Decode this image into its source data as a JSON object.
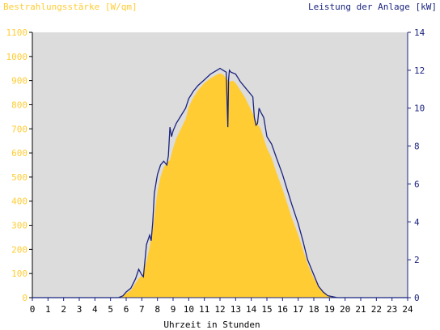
{
  "chart_data": {
    "type": "area",
    "left_axis_label": "Bestrahlungsstärke [W/qm]",
    "right_axis_label": "Leistung der Anlage [kW]",
    "xlabel": "Uhrzeit in Stunden",
    "xlim": [
      0,
      24
    ],
    "ylim_left": [
      0,
      1100
    ],
    "ylim_right": [
      0,
      14
    ],
    "x_ticks": [
      "0",
      "1",
      "2",
      "3",
      "4",
      "5",
      "6",
      "7",
      "8",
      "9",
      "10",
      "11",
      "12",
      "13",
      "14",
      "15",
      "16",
      "17",
      "18",
      "19",
      "20",
      "21",
      "22",
      "23",
      "24"
    ],
    "y_left_ticks": [
      "0",
      "100",
      "200",
      "300",
      "400",
      "500",
      "600",
      "700",
      "800",
      "900",
      "1000",
      "1100"
    ],
    "y_right_ticks": [
      "0",
      "2",
      "4",
      "6",
      "8",
      "10",
      "12",
      "14"
    ],
    "grid": false,
    "colors": {
      "plot_background": "#dcdcdc",
      "irradiance_fill": "#ffcc33",
      "power_line": "#1a237e",
      "left_axis_text": "#ffcc33",
      "right_axis_text": "#1a237e",
      "x_axis_text": "#000000"
    },
    "series": [
      {
        "name": "Bestrahlungsstärke",
        "axis": "left",
        "style": "filled-area",
        "x": [
          0,
          5.5,
          5.8,
          6.0,
          6.3,
          6.6,
          6.8,
          7.0,
          7.3,
          7.5,
          7.7,
          7.9,
          8.0,
          8.2,
          8.4,
          8.6,
          8.8,
          9.0,
          9.2,
          9.5,
          9.8,
          10.0,
          10.3,
          10.6,
          11.0,
          11.4,
          11.8,
          12.0,
          12.2,
          12.4,
          12.6,
          12.8,
          13.0,
          13.3,
          13.6,
          13.9,
          14.2,
          14.4,
          14.6,
          14.8,
          15.0,
          15.3,
          15.6,
          16.0,
          16.3,
          16.6,
          17.0,
          17.3,
          17.6,
          18.0,
          18.3,
          18.6,
          18.9,
          19.2,
          19.5,
          24
        ],
        "y": [
          0,
          0,
          8,
          18,
          30,
          60,
          80,
          90,
          150,
          210,
          280,
          390,
          440,
          500,
          540,
          560,
          570,
          620,
          660,
          700,
          740,
          790,
          830,
          860,
          890,
          910,
          925,
          930,
          925,
          910,
          895,
          900,
          890,
          860,
          830,
          790,
          750,
          720,
          700,
          660,
          620,
          580,
          520,
          450,
          390,
          330,
          260,
          200,
          140,
          80,
          50,
          25,
          10,
          3,
          0,
          0
        ]
      },
      {
        "name": "Leistung der Anlage",
        "axis": "right",
        "style": "line",
        "x": [
          0,
          5.5,
          5.8,
          6.0,
          6.3,
          6.6,
          6.8,
          7.0,
          7.1,
          7.3,
          7.5,
          7.6,
          7.7,
          7.8,
          7.9,
          8.0,
          8.2,
          8.4,
          8.6,
          8.7,
          8.8,
          8.9,
          9.0,
          9.2,
          9.5,
          9.8,
          10.0,
          10.3,
          10.6,
          11.0,
          11.4,
          11.8,
          12.0,
          12.2,
          12.4,
          12.5,
          12.55,
          12.6,
          12.7,
          13.0,
          13.3,
          13.6,
          13.9,
          14.1,
          14.2,
          14.3,
          14.4,
          14.5,
          14.6,
          14.8,
          15.0,
          15.3,
          15.6,
          16.0,
          16.3,
          16.6,
          17.0,
          17.3,
          17.6,
          18.0,
          18.3,
          18.6,
          18.9,
          19.2,
          19.5,
          24
        ],
        "y": [
          0,
          0,
          0.1,
          0.3,
          0.5,
          1.0,
          1.5,
          1.2,
          1.1,
          2.8,
          3.3,
          3.0,
          4.0,
          5.5,
          6.0,
          6.5,
          7.0,
          7.2,
          7.0,
          7.5,
          9.0,
          8.5,
          8.8,
          9.2,
          9.6,
          10.0,
          10.5,
          10.9,
          11.2,
          11.5,
          11.8,
          12.0,
          12.1,
          12.0,
          11.9,
          9.0,
          11.5,
          12.0,
          11.9,
          11.8,
          11.4,
          11.1,
          10.8,
          10.6,
          9.5,
          9.1,
          9.2,
          10.0,
          9.8,
          9.5,
          8.5,
          8.1,
          7.4,
          6.5,
          5.7,
          4.9,
          3.9,
          3.0,
          2.0,
          1.2,
          0.6,
          0.3,
          0.1,
          0.05,
          0,
          0
        ]
      }
    ]
  }
}
